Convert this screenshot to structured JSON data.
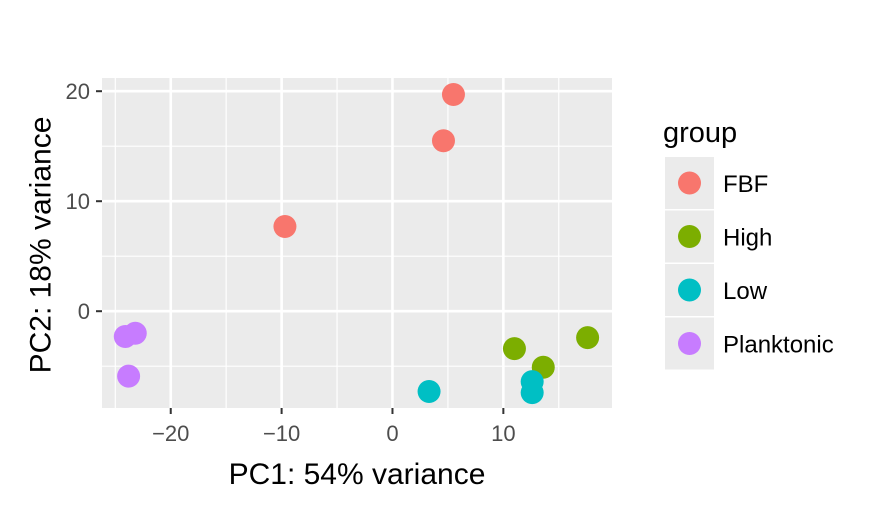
{
  "chart_data": {
    "type": "scatter",
    "xlabel": "PC1: 54% variance",
    "ylabel": "PC2: 18% variance",
    "xlim": [
      -26.2,
      19.8
    ],
    "ylim": [
      -8.8,
      21.2
    ],
    "x_ticks": [
      -20,
      -10,
      0,
      10
    ],
    "x_tick_labels": [
      "−20",
      "−10",
      "0",
      "10"
    ],
    "y_ticks": [
      0,
      10,
      20
    ],
    "y_tick_labels": [
      "0",
      "10",
      "20"
    ],
    "grid": true,
    "legend_title": "group",
    "legend_position": "right",
    "series": [
      {
        "name": "FBF",
        "color": "#F8766D",
        "points": [
          [
            5.5,
            19.7
          ],
          [
            4.6,
            15.5
          ],
          [
            -9.7,
            7.7
          ]
        ]
      },
      {
        "name": "High",
        "color": "#7CAE00",
        "points": [
          [
            17.6,
            -2.4
          ],
          [
            11.0,
            -3.4
          ],
          [
            13.6,
            -5.1
          ]
        ]
      },
      {
        "name": "Low",
        "color": "#00BFC4",
        "points": [
          [
            3.3,
            -7.3
          ],
          [
            12.6,
            -6.4
          ],
          [
            12.6,
            -7.4
          ]
        ]
      },
      {
        "name": "Planktonic",
        "color": "#C77CFF",
        "points": [
          [
            -23.2,
            -2.0
          ],
          [
            -24.1,
            -2.3
          ],
          [
            -23.8,
            -5.9
          ]
        ]
      }
    ]
  }
}
